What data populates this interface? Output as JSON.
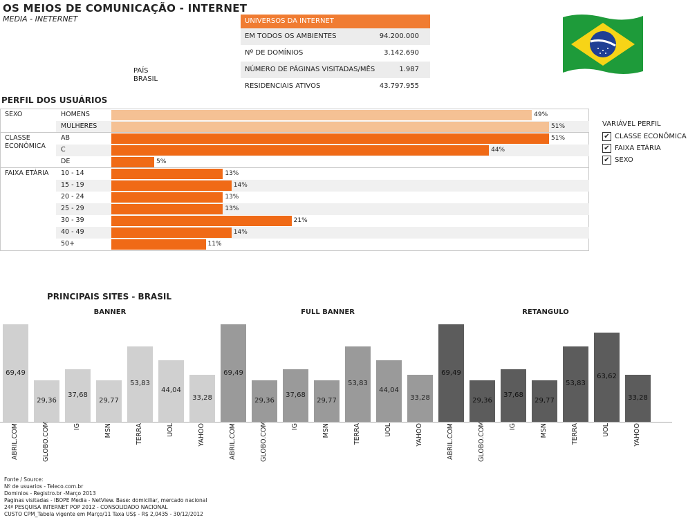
{
  "header": {
    "title": "OS MEIOS DE COMUNICAÇÃO - INTERNET",
    "subtitle": "MEDIA - INETERNET",
    "pais_label": "PAÍS",
    "pais_value": "BRASIL"
  },
  "universos": {
    "header": "UNIVERSOS DA INTERNET",
    "rows": [
      {
        "label": "EM TODOS OS AMBIENTES",
        "value": "94.200.000"
      },
      {
        "label": "Nº DE DOMÍNIOS",
        "value": "3.142.690"
      },
      {
        "label": "NÚMERO DE PÁGINAS VISITADAS/MÊS",
        "value": "1.987"
      },
      {
        "label": "RESIDENCIAIS ATIVOS",
        "value": "43.797.955"
      }
    ]
  },
  "legend": {
    "title": "VARIÁVEL PERFIL",
    "items": [
      "CLASSE ECONÔMICA",
      "FAIXA ETÁRIA",
      "SEXO"
    ]
  },
  "colors": {
    "sexo": "#f5c194",
    "orange": "#f06a16",
    "banner": "#d0d0d0",
    "full_banner": "#9a9a9a",
    "retangulo": "#5c5c5c"
  },
  "chart_data": [
    {
      "type": "bar",
      "orientation": "horizontal",
      "title": "PERFIL DOS USUÁRIOS",
      "groups": [
        {
          "name": "SEXO",
          "categories": [
            "HOMENS",
            "MULHERES"
          ],
          "values": [
            49,
            51
          ],
          "labels": [
            "49%",
            "51%"
          ]
        },
        {
          "name": "CLASSE ECONÔMICA",
          "categories": [
            "AB",
            "C",
            "DE"
          ],
          "values": [
            51,
            44,
            5
          ],
          "labels": [
            "51%",
            "44%",
            "5%"
          ]
        },
        {
          "name": "FAIXA ETÁRIA",
          "categories": [
            "10 - 14",
            "15 - 19",
            "20 - 24",
            "25 - 29",
            "30 - 39",
            "40 - 49",
            "50+"
          ],
          "values": [
            13,
            14,
            13,
            13,
            21,
            14,
            11
          ],
          "labels": [
            "13%",
            "14%",
            "13%",
            "13%",
            "21%",
            "14%",
            "11%"
          ]
        }
      ],
      "xlim": [
        0,
        51
      ]
    },
    {
      "type": "bar",
      "title": "PRINCIPAIS SITES - BRASIL",
      "ylim": [
        0,
        69.49
      ],
      "panels": [
        {
          "name": "BANNER",
          "categories": [
            "ABRIL.COM",
            "GLOBO.COM",
            "IG",
            "MSN",
            "TERRA",
            "UOL",
            "YAHOO"
          ],
          "values": [
            69.49,
            29.36,
            37.68,
            29.77,
            53.83,
            44.04,
            33.28
          ],
          "labels": [
            "69,49",
            "29,36",
            "37,68",
            "29,77",
            "53,83",
            "44,04",
            "33,28"
          ]
        },
        {
          "name": "FULL BANNER",
          "categories": [
            "ABRIL.COM",
            "GLOBO.COM",
            "IG",
            "MSN",
            "TERRA",
            "UOL",
            "YAHOO"
          ],
          "values": [
            69.49,
            29.36,
            37.68,
            29.77,
            53.83,
            44.04,
            33.28
          ],
          "labels": [
            "69,49",
            "29,36",
            "37,68",
            "29,77",
            "53,83",
            "44,04",
            "33,28"
          ]
        },
        {
          "name": "RETANGULO",
          "categories": [
            "ABRIL.COM",
            "GLOBO.COM",
            "IG",
            "MSN",
            "TERRA",
            "UOL",
            "YAHOO"
          ],
          "values": [
            69.49,
            29.36,
            37.68,
            29.77,
            53.83,
            63.62,
            33.28
          ],
          "labels": [
            "69,49",
            "29,36",
            "37,68",
            "29,77",
            "53,83",
            "63,62",
            "33,28"
          ]
        }
      ]
    }
  ],
  "source": [
    "Fonte / Source:",
    "Nº de usuarios - Teleco.com.br",
    "Dominios - Registro.br  -Março 2013",
    "Paginas visitadas - IBOPE Media - NetView. Base: domiciliar, mercado nacional",
    "24ª PESQUISA INTERNET POP 2012 - CONSOLIDADO NACIONAL",
    "CUSTO CPM_Tabela vigente em Março/11 Taxa US$ - R$ 2,0435 - 30/12/2012"
  ]
}
